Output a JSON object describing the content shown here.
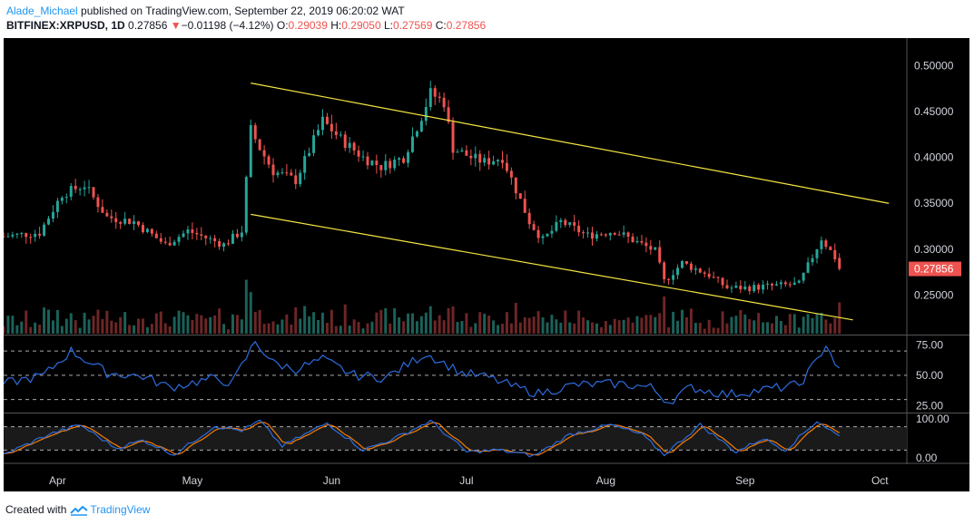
{
  "header": {
    "author": "Alade_Michael",
    "published_text": " published on TradingView.com, September 22, 2019 06:20:02 WAT",
    "symbol": "BITFINEX:XRPUSD, 1D",
    "last": "0.27856",
    "change_arrow": "▼",
    "change": "−0.01198 (−4.12%)",
    "open_label": "O:",
    "open": "0.29039",
    "high_label": "H:",
    "high": "0.29050",
    "low_label": "L:",
    "low": "0.27569",
    "close_label": "C:",
    "close": "0.27856"
  },
  "footer": {
    "created_with": "Created with",
    "brand": "TradingView"
  },
  "colors": {
    "up": "#26a69a",
    "down": "#ef5350",
    "up_volume": "#1e6b63",
    "down_volume": "#7a2a2a",
    "channel": "#f5e642",
    "rsi": "#2d6cdf",
    "stoch_k": "#2d6cdf",
    "stoch_d": "#f57c00",
    "price_tag": "#ef5350"
  },
  "chart_data": {
    "type": "candlestick",
    "symbol": "BITFINEX:XRPUSD",
    "interval": "1D",
    "price_axis": {
      "ticks": [
        0.25,
        0.3,
        0.35,
        0.4,
        0.45,
        0.5
      ],
      "tick_labels": [
        "0.25000",
        "0.30000",
        "0.35000",
        "0.40000",
        "0.45000",
        "0.50000"
      ],
      "range": [
        0.208,
        0.53
      ],
      "last_price_label": "0.27856"
    },
    "x_axis": {
      "tick_labels": [
        "Apr",
        "May",
        "Jun",
        "Jul",
        "Aug",
        "Sep",
        "Oct"
      ],
      "tick_dates": [
        "2019-04-01",
        "2019-05-01",
        "2019-06-01",
        "2019-07-01",
        "2019-08-01",
        "2019-09-01",
        "2019-10-01"
      ],
      "range": [
        "2019-03-20",
        "2019-10-07"
      ]
    },
    "channel": {
      "upper": {
        "start": [
          "2019-05-14",
          0.481
        ],
        "end": [
          "2019-10-03",
          0.35
        ]
      },
      "lower": {
        "start": [
          "2019-05-14",
          0.338
        ],
        "end": [
          "2019-09-25",
          0.223
        ]
      }
    },
    "close_keypoints": [
      [
        "2019-03-20",
        0.314
      ],
      [
        "2019-03-28",
        0.318
      ],
      [
        "2019-04-02",
        0.36
      ],
      [
        "2019-04-07",
        0.37
      ],
      [
        "2019-04-12",
        0.335
      ],
      [
        "2019-04-18",
        0.33
      ],
      [
        "2019-04-25",
        0.305
      ],
      [
        "2019-04-30",
        0.32
      ],
      [
        "2019-05-08",
        0.305
      ],
      [
        "2019-05-12",
        0.32
      ],
      [
        "2019-05-14",
        0.43
      ],
      [
        "2019-05-16",
        0.41
      ],
      [
        "2019-05-19",
        0.385
      ],
      [
        "2019-05-24",
        0.375
      ],
      [
        "2019-05-30",
        0.44
      ],
      [
        "2019-06-03",
        0.42
      ],
      [
        "2019-06-08",
        0.4
      ],
      [
        "2019-06-12",
        0.39
      ],
      [
        "2019-06-17",
        0.4
      ],
      [
        "2019-06-21",
        0.445
      ],
      [
        "2019-06-23",
        0.47
      ],
      [
        "2019-06-26",
        0.46
      ],
      [
        "2019-06-28",
        0.41
      ],
      [
        "2019-07-02",
        0.4
      ],
      [
        "2019-07-05",
        0.395
      ],
      [
        "2019-07-09",
        0.4
      ],
      [
        "2019-07-15",
        0.33
      ],
      [
        "2019-07-18",
        0.31
      ],
      [
        "2019-07-22",
        0.33
      ],
      [
        "2019-07-28",
        0.315
      ],
      [
        "2019-08-03",
        0.32
      ],
      [
        "2019-08-07",
        0.31
      ],
      [
        "2019-08-12",
        0.298
      ],
      [
        "2019-08-14",
        0.265
      ],
      [
        "2019-08-18",
        0.285
      ],
      [
        "2019-08-24",
        0.272
      ],
      [
        "2019-08-28",
        0.258
      ],
      [
        "2019-09-02",
        0.258
      ],
      [
        "2019-09-07",
        0.26
      ],
      [
        "2019-09-13",
        0.262
      ],
      [
        "2019-09-16",
        0.292
      ],
      [
        "2019-09-18",
        0.312
      ],
      [
        "2019-09-21",
        0.291
      ],
      [
        "2019-09-22",
        0.27856
      ]
    ],
    "rsi": {
      "tick_labels": [
        "25.00",
        "50.00",
        "75.00"
      ],
      "ticks": [
        25,
        50,
        75
      ],
      "bands": [
        30,
        50,
        70
      ],
      "range": [
        20,
        82
      ],
      "keypoints": [
        [
          "2019-03-20",
          43
        ],
        [
          "2019-03-29",
          50
        ],
        [
          "2019-04-04",
          70
        ],
        [
          "2019-04-12",
          52
        ],
        [
          "2019-04-20",
          49
        ],
        [
          "2019-04-26",
          40
        ],
        [
          "2019-05-05",
          47
        ],
        [
          "2019-05-10",
          44
        ],
        [
          "2019-05-15",
          78
        ],
        [
          "2019-05-19",
          60
        ],
        [
          "2019-05-24",
          55
        ],
        [
          "2019-05-30",
          63
        ],
        [
          "2019-06-06",
          50
        ],
        [
          "2019-06-13",
          48
        ],
        [
          "2019-06-22",
          68
        ],
        [
          "2019-06-30",
          52
        ],
        [
          "2019-07-06",
          48
        ],
        [
          "2019-07-12",
          40
        ],
        [
          "2019-07-17",
          35
        ],
        [
          "2019-07-25",
          42
        ],
        [
          "2019-08-04",
          43
        ],
        [
          "2019-08-11",
          40
        ],
        [
          "2019-08-15",
          28
        ],
        [
          "2019-08-20",
          40
        ],
        [
          "2019-08-28",
          34
        ],
        [
          "2019-09-05",
          38
        ],
        [
          "2019-09-13",
          42
        ],
        [
          "2019-09-17",
          62
        ],
        [
          "2019-09-19",
          76
        ],
        [
          "2019-09-22",
          53
        ]
      ]
    },
    "stochastic": {
      "tick_labels": [
        "0.00",
        "100.00"
      ],
      "ticks": [
        0,
        100
      ],
      "bands": [
        20,
        80
      ],
      "range": [
        -12,
        112
      ],
      "k_keypoints": [
        [
          "2019-03-20",
          8
        ],
        [
          "2019-03-30",
          60
        ],
        [
          "2019-04-06",
          85
        ],
        [
          "2019-04-14",
          25
        ],
        [
          "2019-04-20",
          45
        ],
        [
          "2019-04-27",
          8
        ],
        [
          "2019-05-06",
          82
        ],
        [
          "2019-05-12",
          70
        ],
        [
          "2019-05-16",
          95
        ],
        [
          "2019-05-21",
          30
        ],
        [
          "2019-05-31",
          90
        ],
        [
          "2019-06-08",
          20
        ],
        [
          "2019-06-15",
          50
        ],
        [
          "2019-06-23",
          95
        ],
        [
          "2019-07-01",
          15
        ],
        [
          "2019-07-08",
          20
        ],
        [
          "2019-07-16",
          5
        ],
        [
          "2019-07-24",
          60
        ],
        [
          "2019-08-02",
          85
        ],
        [
          "2019-08-09",
          60
        ],
        [
          "2019-08-14",
          8
        ],
        [
          "2019-08-22",
          85
        ],
        [
          "2019-08-30",
          15
        ],
        [
          "2019-09-05",
          50
        ],
        [
          "2019-09-10",
          20
        ],
        [
          "2019-09-17",
          95
        ],
        [
          "2019-09-22",
          55
        ]
      ]
    }
  }
}
